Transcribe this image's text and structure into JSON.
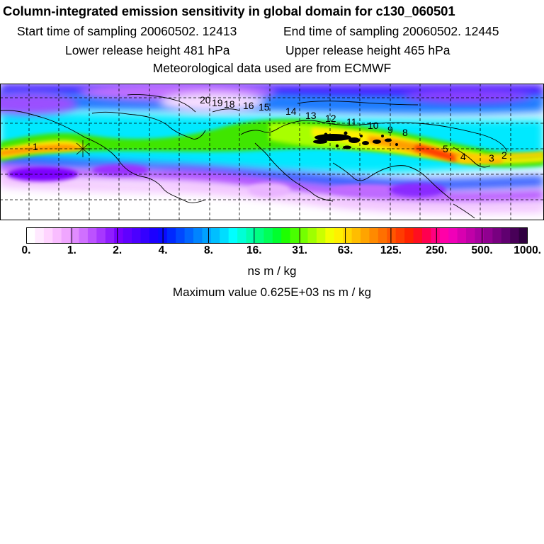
{
  "header": {
    "title": "Column-integrated emission sensitivity in global domain for c130_060501",
    "start_time": "Start time of sampling 20060502. 12413",
    "end_time": "End time of sampling 20060502. 12445",
    "lower_height": "Lower release height  481 hPa",
    "upper_height": "Upper release height  465 hPa",
    "met_data": "Meteorological data used are from ECMWF"
  },
  "map": {
    "contour_labels": [
      "20",
      "19",
      "18",
      "16",
      "15",
      "14",
      "13",
      "12",
      "11",
      "10",
      "9",
      "8",
      "5",
      "4",
      "3",
      "2",
      "1"
    ],
    "plume_colors": {
      "core": "#ff2a00",
      "orange": "#ff9d00",
      "yellow": "#fff000",
      "green": "#4ce600",
      "cyan": "#00ffff",
      "blue": "#2f8dff",
      "violet": "#7a00ff",
      "lilac": "#e7a8ff"
    }
  },
  "colorbar": {
    "ticks": [
      "0.",
      "1.",
      "2.",
      "4.",
      "8.",
      "16.",
      "31.",
      "63.",
      "125.",
      "250.",
      "500.",
      "1000."
    ],
    "colors": [
      "#ffffff",
      "#ffe9ff",
      "#ffd4ff",
      "#f9bdff",
      "#f0a6ff",
      "#e18cff",
      "#d070ff",
      "#bc52ff",
      "#a737ff",
      "#8f1dff",
      "#7700ff",
      "#6000ff",
      "#4b00ff",
      "#3400ff",
      "#1c00ff",
      "#0a0aff",
      "#0029ff",
      "#0048ff",
      "#0066ff",
      "#0084ff",
      "#00a1ff",
      "#00bfff",
      "#00ddff",
      "#00ffff",
      "#00ffd6",
      "#00ffac",
      "#00ff82",
      "#00ff58",
      "#00ff2e",
      "#1eff00",
      "#49ff00",
      "#74ff00",
      "#9fff00",
      "#caff00",
      "#f2ff00",
      "#fff000",
      "#ffd700",
      "#ffbd00",
      "#ffa400",
      "#ff8a00",
      "#ff7000",
      "#ff5600",
      "#ff3c00",
      "#ff2200",
      "#ff0f20",
      "#ff0050",
      "#ff0080",
      "#ff00a8",
      "#f000b8",
      "#d800b0",
      "#c000a8",
      "#a800a0",
      "#900090",
      "#780080",
      "#600070",
      "#480058",
      "#300040"
    ],
    "units": "ns m / kg",
    "max_value": "Maximum value  0.625E+03 ns m / kg"
  }
}
